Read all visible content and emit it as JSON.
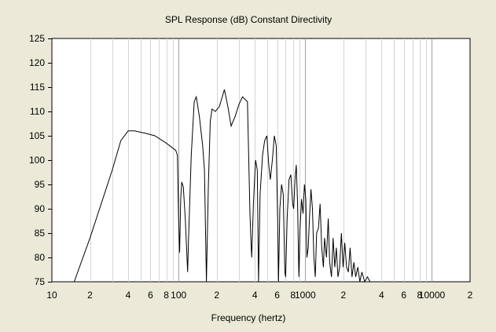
{
  "chart_data": {
    "type": "line",
    "title": "SPL Response (dB)   Constant Directivity",
    "xlabel": "Frequency (hertz)",
    "ylabel": "",
    "xscale": "log",
    "xlim": [
      10,
      20000
    ],
    "ylim": [
      75,
      125
    ],
    "grid": true,
    "x_tick_labels": [
      {
        "f": 10,
        "t": "10"
      },
      {
        "f": 20,
        "t": "2"
      },
      {
        "f": 40,
        "t": "4"
      },
      {
        "f": 60,
        "t": "6"
      },
      {
        "f": 80,
        "t": "8"
      },
      {
        "f": 100,
        "t": "100"
      },
      {
        "f": 200,
        "t": "2"
      },
      {
        "f": 400,
        "t": "4"
      },
      {
        "f": 600,
        "t": "6"
      },
      {
        "f": 800,
        "t": "8"
      },
      {
        "f": 1000,
        "t": "1000"
      },
      {
        "f": 2000,
        "t": "2"
      },
      {
        "f": 4000,
        "t": "4"
      },
      {
        "f": 6000,
        "t": "6"
      },
      {
        "f": 8000,
        "t": "8"
      },
      {
        "f": 10000,
        "t": "10000"
      },
      {
        "f": 20000,
        "t": "2"
      }
    ],
    "y_tick_labels": [
      "75",
      "80",
      "85",
      "90",
      "95",
      "100",
      "105",
      "110",
      "115",
      "120",
      "125"
    ],
    "series": [
      {
        "name": "SPL",
        "points": [
          [
            15,
            75
          ],
          [
            20,
            84
          ],
          [
            30,
            98
          ],
          [
            35,
            104
          ],
          [
            40,
            106
          ],
          [
            45,
            106
          ],
          [
            55,
            105.5
          ],
          [
            65,
            105
          ],
          [
            80,
            103.5
          ],
          [
            95,
            102
          ],
          [
            98,
            101
          ],
          [
            100,
            88
          ],
          [
            102,
            81
          ],
          [
            104,
            92
          ],
          [
            106,
            95.5
          ],
          [
            109,
            94.5
          ],
          [
            113,
            88
          ],
          [
            118,
            77
          ],
          [
            120,
            84
          ],
          [
            126,
            101
          ],
          [
            133,
            112
          ],
          [
            138,
            113
          ],
          [
            146,
            109
          ],
          [
            155,
            103
          ],
          [
            160,
            98
          ],
          [
            166,
            75
          ],
          [
            172,
            95
          ],
          [
            178,
            108
          ],
          [
            184,
            110.5
          ],
          [
            195,
            110
          ],
          [
            210,
            111
          ],
          [
            230,
            114.5
          ],
          [
            245,
            111
          ],
          [
            260,
            107
          ],
          [
            280,
            109
          ],
          [
            300,
            111.5
          ],
          [
            320,
            113
          ],
          [
            350,
            112
          ],
          [
            366,
            89
          ],
          [
            372,
            84
          ],
          [
            378,
            80
          ],
          [
            390,
            91
          ],
          [
            405,
            100
          ],
          [
            418,
            98
          ],
          [
            428,
            75
          ],
          [
            440,
            93
          ],
          [
            460,
            101
          ],
          [
            478,
            104
          ],
          [
            498,
            105
          ],
          [
            515,
            99
          ],
          [
            530,
            96
          ],
          [
            550,
            100
          ],
          [
            570,
            105
          ],
          [
            590,
            103
          ],
          [
            605,
            88
          ],
          [
            615,
            75
          ],
          [
            630,
            90
          ],
          [
            650,
            95
          ],
          [
            670,
            93
          ],
          [
            690,
            77
          ],
          [
            700,
            76
          ],
          [
            720,
            88
          ],
          [
            745,
            96
          ],
          [
            770,
            97
          ],
          [
            795,
            91
          ],
          [
            810,
            90
          ],
          [
            830,
            96
          ],
          [
            850,
            99
          ],
          [
            870,
            91
          ],
          [
            890,
            76
          ],
          [
            910,
            86
          ],
          [
            935,
            92
          ],
          [
            960,
            89
          ],
          [
            985,
            95
          ],
          [
            1010,
            92
          ],
          [
            1030,
            80
          ],
          [
            1055,
            82
          ],
          [
            1080,
            88
          ],
          [
            1110,
            94
          ],
          [
            1140,
            90
          ],
          [
            1170,
            80
          ],
          [
            1200,
            76
          ],
          [
            1230,
            85
          ],
          [
            1270,
            86
          ],
          [
            1310,
            91
          ],
          [
            1350,
            82
          ],
          [
            1390,
            78
          ],
          [
            1420,
            84
          ],
          [
            1470,
            80
          ],
          [
            1520,
            88
          ],
          [
            1560,
            79
          ],
          [
            1610,
            76
          ],
          [
            1660,
            84
          ],
          [
            1710,
            78
          ],
          [
            1760,
            82
          ],
          [
            1810,
            76
          ],
          [
            1870,
            78
          ],
          [
            1930,
            85
          ],
          [
            1990,
            78
          ],
          [
            2050,
            83
          ],
          [
            2120,
            78
          ],
          [
            2190,
            77
          ],
          [
            2260,
            82
          ],
          [
            2340,
            76
          ],
          [
            2420,
            79
          ],
          [
            2500,
            76
          ],
          [
            2600,
            78
          ],
          [
            2700,
            75
          ],
          [
            2800,
            77
          ],
          [
            2950,
            75
          ],
          [
            3100,
            76
          ],
          [
            3250,
            75
          ]
        ]
      }
    ]
  }
}
